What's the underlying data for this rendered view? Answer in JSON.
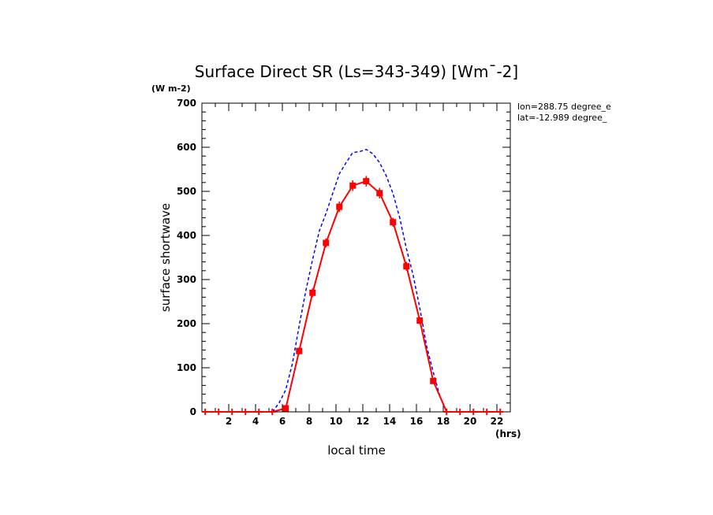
{
  "chart_data": {
    "type": "line",
    "title": "Surface Direct SR (Ls=343-349) [Wm¯-2]",
    "units_label": "(W m-2)",
    "xlabel": "local time",
    "x_units": "(hrs)",
    "ylabel": "surface shortwave",
    "annotations": [
      "lon=288.75 degree_e",
      "lat=-12.989 degree_"
    ],
    "xlim": [
      0,
      23
    ],
    "ylim": [
      0,
      700
    ],
    "x_ticks": [
      2,
      4,
      6,
      8,
      10,
      12,
      14,
      16,
      18,
      20,
      22
    ],
    "y_ticks": [
      0,
      100,
      200,
      300,
      400,
      500,
      600,
      700
    ],
    "grid": false,
    "series": [
      {
        "color": "#ff0000",
        "style": "solid-with-markers",
        "x": [
          0.25,
          1.25,
          2.25,
          3.25,
          4.25,
          5.25,
          6.25,
          7.25,
          8.25,
          9.25,
          10.25,
          11.25,
          12.25,
          13.25,
          14.25,
          15.25,
          16.25,
          17.25,
          18.25,
          19.25,
          20.25,
          21.25,
          22.25
        ],
        "values": [
          0,
          0,
          0,
          0,
          0,
          0,
          8,
          138,
          270,
          383,
          465,
          513,
          523,
          496,
          430,
          330,
          207,
          70,
          0,
          0,
          0,
          0,
          0
        ],
        "error": [
          0,
          0,
          0,
          0,
          0,
          0,
          5,
          8,
          10,
          10,
          12,
          12,
          12,
          12,
          10,
          10,
          8,
          6,
          0,
          0,
          0,
          0,
          0
        ]
      },
      {
        "color": "#0000ff",
        "style": "dashed",
        "x": [
          5.25,
          5.75,
          6.25,
          6.75,
          7.25,
          7.75,
          8.25,
          8.75,
          9.25,
          9.75,
          10.25,
          10.75,
          11.25,
          11.75,
          12.25,
          12.75,
          13.25,
          13.75,
          14.25,
          14.75,
          15.25,
          15.75,
          16.25,
          16.75,
          17.25,
          17.75,
          18.25
        ],
        "values": [
          0,
          20,
          50,
          110,
          195,
          275,
          345,
          410,
          450,
          495,
          540,
          565,
          588,
          590,
          595,
          585,
          565,
          535,
          495,
          440,
          370,
          310,
          235,
          150,
          90,
          35,
          0
        ]
      }
    ]
  }
}
